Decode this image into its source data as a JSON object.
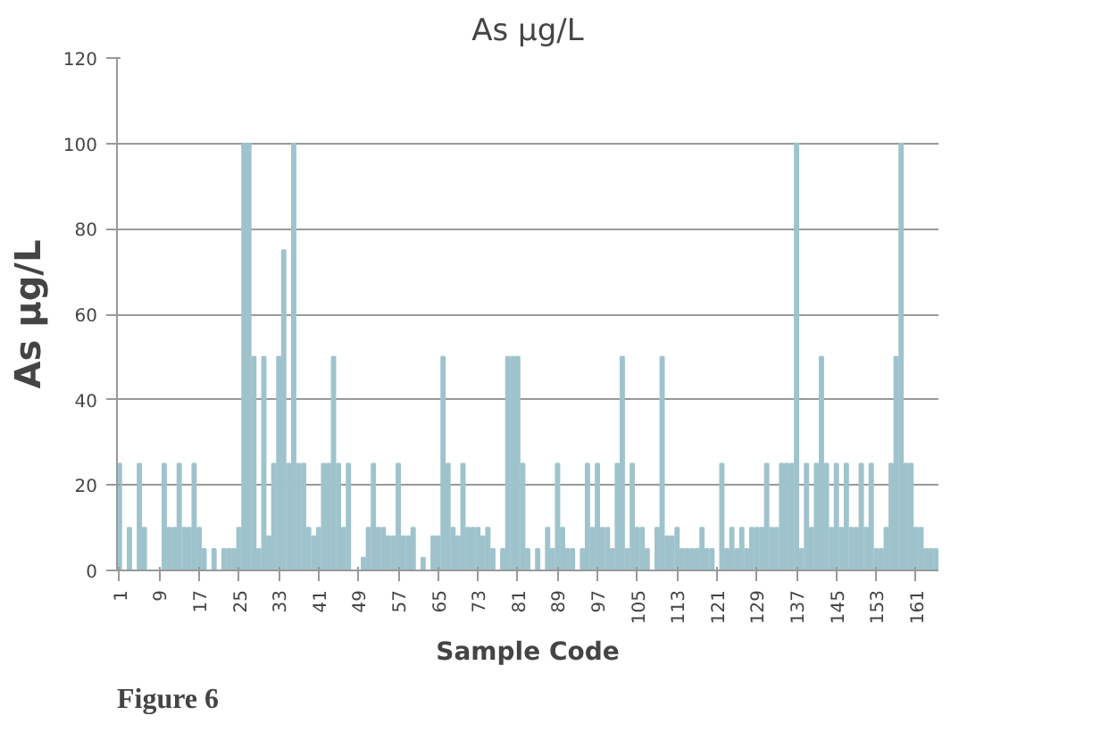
{
  "chart_data": {
    "type": "bar",
    "title": "As µg/L",
    "xlabel": "Sample Code",
    "ylabel": "As µg/L",
    "categories": [
      "1",
      null,
      null,
      null,
      null,
      null,
      null,
      null,
      "9",
      null,
      null,
      null,
      null,
      null,
      null,
      null,
      "17",
      null,
      null,
      null,
      null,
      null,
      null,
      null,
      "25",
      null,
      null,
      null,
      null,
      null,
      null,
      null,
      "33",
      null,
      null,
      null,
      null,
      null,
      null,
      null,
      "41",
      null,
      null,
      null,
      null,
      null,
      null,
      null,
      "49",
      null,
      null,
      null,
      null,
      null,
      null,
      null,
      "57",
      null,
      null,
      null,
      null,
      null,
      null,
      null,
      "65",
      null,
      null,
      null,
      null,
      null,
      null,
      null,
      "73",
      null,
      null,
      null,
      null,
      null,
      null,
      null,
      "81",
      null,
      null,
      null,
      null,
      null,
      null,
      null,
      "89",
      null,
      null,
      null,
      null,
      null,
      null,
      null,
      "97",
      null,
      null,
      null,
      null,
      null,
      null,
      null,
      "105",
      null,
      null,
      null,
      null,
      null,
      null,
      null,
      "113",
      null,
      null,
      null,
      null,
      null,
      null,
      null,
      "121",
      null,
      null,
      null,
      null,
      null,
      null,
      null,
      "129",
      null,
      null,
      null,
      null,
      null,
      null,
      null,
      "137",
      null,
      null,
      null,
      null,
      null,
      null,
      null,
      "145",
      null,
      null,
      null,
      null,
      null,
      null,
      null,
      "153",
      null,
      null,
      null,
      null,
      null,
      null,
      null,
      "161",
      null,
      null,
      null,
      null
    ],
    "values": [
      25,
      0,
      10,
      0,
      25,
      10,
      0,
      0,
      0,
      25,
      10,
      10,
      25,
      10,
      10,
      25,
      10,
      5,
      0,
      5,
      0,
      5,
      5,
      5,
      10,
      100,
      100,
      50,
      5,
      50,
      8,
      25,
      50,
      75,
      25,
      100,
      25,
      25,
      10,
      8,
      10,
      25,
      25,
      50,
      25,
      10,
      25,
      0,
      0,
      3,
      10,
      25,
      10,
      10,
      8,
      8,
      25,
      8,
      8,
      10,
      0,
      3,
      0,
      8,
      8,
      50,
      25,
      10,
      8,
      25,
      10,
      10,
      10,
      8,
      10,
      5,
      0,
      5,
      50,
      50,
      50,
      25,
      5,
      0,
      5,
      0,
      10,
      5,
      25,
      10,
      5,
      5,
      0,
      5,
      25,
      10,
      25,
      10,
      10,
      5,
      25,
      50,
      5,
      25,
      10,
      10,
      5,
      0,
      10,
      50,
      8,
      8,
      10,
      5,
      5,
      5,
      5,
      10,
      5,
      5,
      0,
      25,
      5,
      10,
      5,
      10,
      5,
      10,
      10,
      10,
      25,
      10,
      10,
      25,
      25,
      25,
      100,
      5,
      25,
      10,
      25,
      50,
      25,
      10,
      25,
      10,
      25,
      10,
      10,
      25,
      10,
      25,
      5,
      5,
      10,
      25,
      50,
      100,
      25,
      25,
      10,
      10,
      5,
      5,
      5
    ],
    "color": "#9fc3cc",
    "ylim": [
      0,
      120
    ],
    "yticks": [
      0,
      20,
      40,
      60,
      80,
      100,
      120
    ],
    "grid": "y",
    "annotations": [
      "Figure 6"
    ]
  }
}
